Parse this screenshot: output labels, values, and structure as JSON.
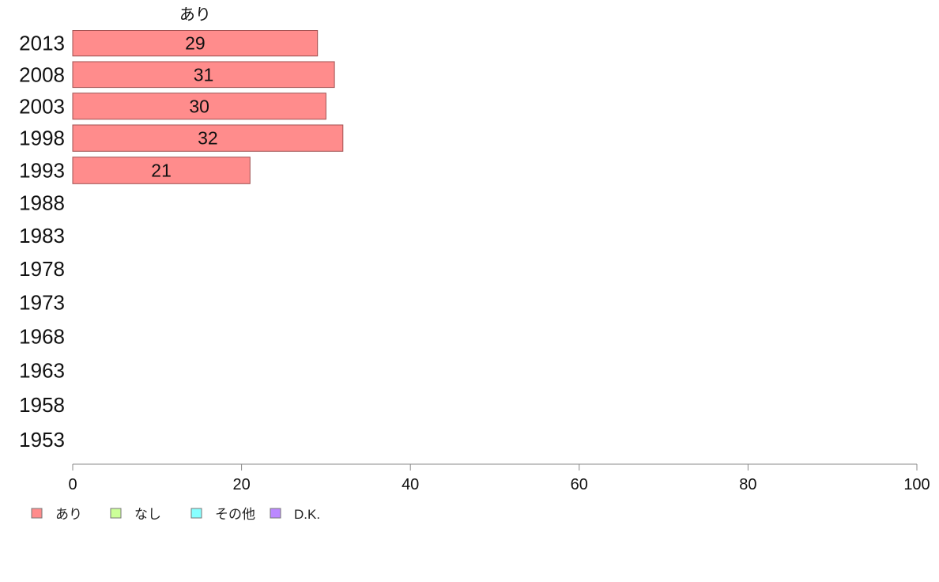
{
  "chart_data": {
    "type": "bar",
    "orientation": "horizontal",
    "stacked": true,
    "categories": [
      "2013",
      "2008",
      "2003",
      "1998",
      "1993",
      "1988",
      "1983",
      "1978",
      "1973",
      "1968",
      "1963",
      "1958",
      "1953"
    ],
    "series": [
      {
        "name": "あり",
        "color": "#FF8C8C",
        "values": [
          29,
          31,
          30,
          32,
          21,
          null,
          null,
          null,
          null,
          null,
          null,
          null,
          null
        ]
      },
      {
        "name": "なし",
        "color": "#CCFF99",
        "values": [
          null,
          null,
          null,
          null,
          null,
          null,
          null,
          null,
          null,
          null,
          null,
          null,
          null
        ]
      },
      {
        "name": "その他",
        "color": "#88FFFF",
        "values": [
          null,
          null,
          null,
          null,
          null,
          null,
          null,
          null,
          null,
          null,
          null,
          null,
          null
        ]
      },
      {
        "name": "D.K.",
        "color": "#BB88FF",
        "values": [
          null,
          null,
          null,
          null,
          null,
          null,
          null,
          null,
          null,
          null,
          null,
          null,
          null
        ]
      }
    ],
    "segment_title": "あり",
    "xlim": [
      0,
      100
    ],
    "xticks": [
      "0",
      "20",
      "40",
      "60",
      "80",
      "100"
    ],
    "grid": false,
    "legend_position": "bottom-left",
    "bar_border_color": "#A05050"
  }
}
